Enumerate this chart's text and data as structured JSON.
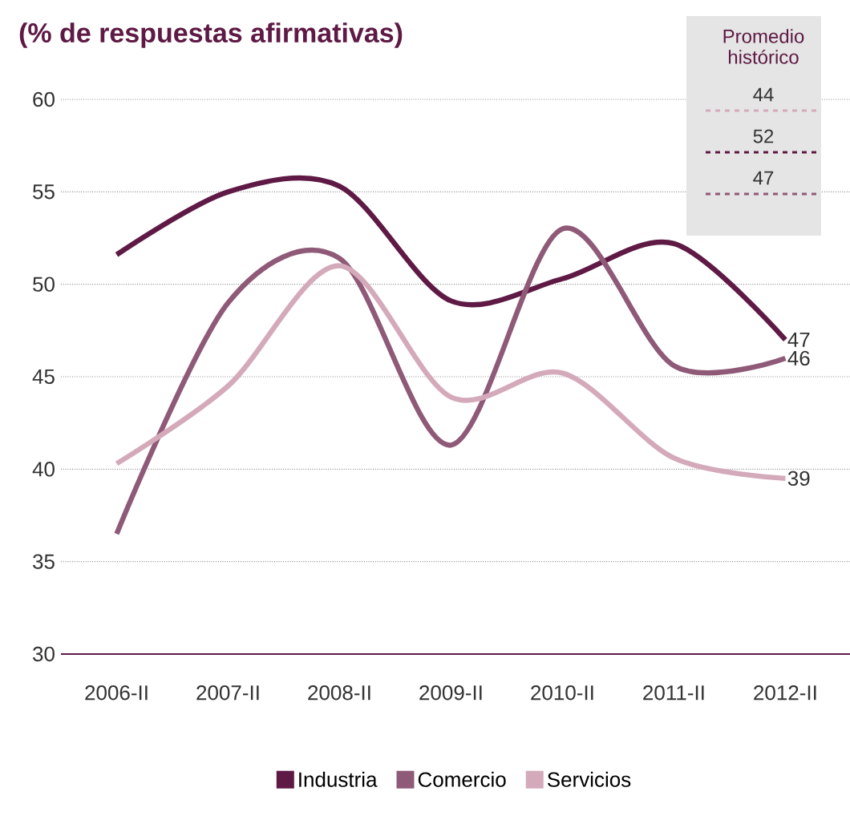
{
  "chart_data": {
    "type": "line",
    "title": "(% de respuestas afirmativas)",
    "categories": [
      "2006-II",
      "2007-II",
      "2008-II",
      "2009-II",
      "2010-II",
      "2011-II",
      "2012-II"
    ],
    "series": [
      {
        "name": "Industria",
        "color": "#5e1a45",
        "values": [
          51.6,
          55.0,
          55.3,
          49.1,
          50.3,
          52.2,
          47
        ],
        "value_labels": [
          null,
          null,
          null,
          null,
          null,
          null,
          "47"
        ]
      },
      {
        "name": "Comercio",
        "color": "#8f5a78",
        "values": [
          36.5,
          49.0,
          51.4,
          41.3,
          53.0,
          45.6,
          46
        ],
        "value_labels": [
          null,
          null,
          null,
          null,
          null,
          null,
          "46"
        ]
      },
      {
        "name": "Servicios",
        "color": "#d4aabb",
        "values": [
          40.3,
          44.5,
          51.0,
          43.9,
          45.2,
          40.6,
          39.5
        ],
        "value_labels": [
          null,
          null,
          null,
          null,
          null,
          null,
          "39"
        ]
      }
    ],
    "ylim": [
      30,
      60
    ],
    "yticks": [
      30,
      35,
      40,
      45,
      50,
      55,
      60
    ],
    "grid": "y",
    "legend": "bottom",
    "annotations": [
      "Promedio histórico",
      "44",
      "52",
      "47"
    ]
  }
}
